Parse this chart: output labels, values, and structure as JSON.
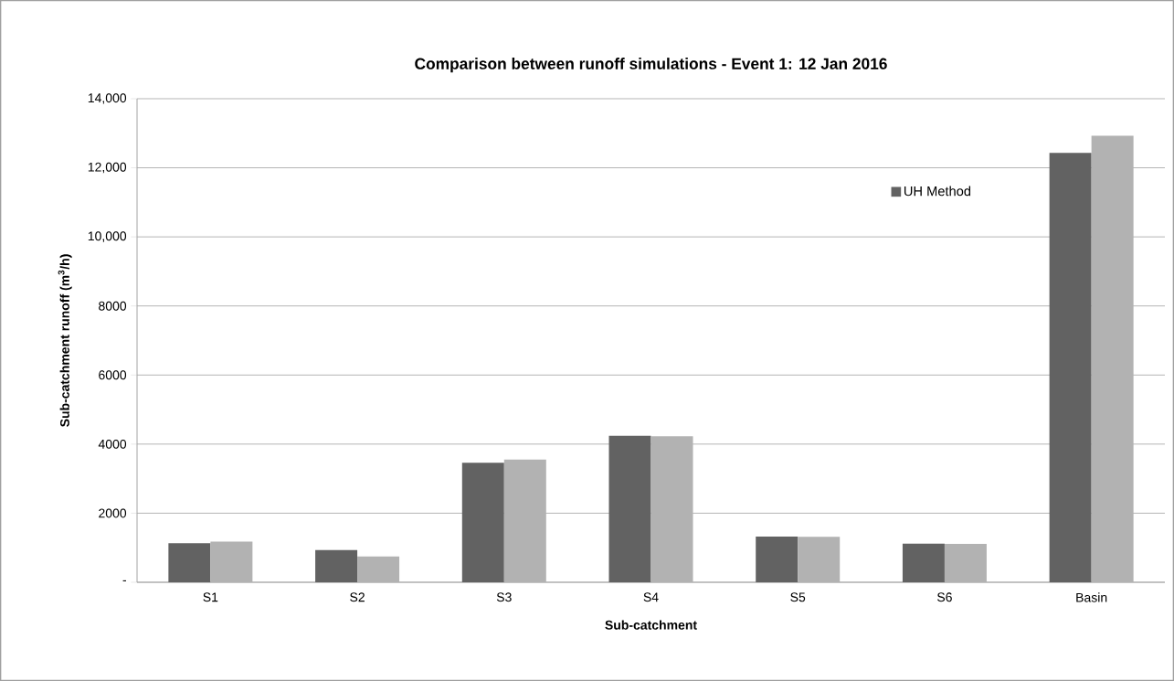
{
  "chart_data": {
    "type": "bar",
    "title": "Comparison between runoff simulations - Event 1: 12 Jan 2016",
    "xlabel": "Sub-catchment",
    "ylabel": "Sub-catchment runoff (m$^{3}$/h)",
    "categories": [
      "S1",
      "S2",
      "S3",
      "S4",
      "S5",
      "S6",
      "Basin"
    ],
    "series": [
      {
        "name": "UH Method",
        "color": "#626262",
        "values": [
          1130,
          930,
          3460,
          4240,
          1320,
          1120,
          12430
        ]
      },
      {
        "color": "#b2b2b2",
        "values": [
          1180,
          750,
          3550,
          4230,
          1315,
          1110,
          12930
        ]
      }
    ],
    "ylim": [
      0,
      14000
    ],
    "yticks": [
      {
        "value": 0,
        "label": "-"
      },
      2000,
      4000,
      6000,
      8000,
      {
        "value": 10000,
        "label": "10,000"
      },
      {
        "value": 12000,
        "label": "12,000"
      },
      {
        "value": 14000,
        "label": "14,000"
      }
    ],
    "grid": "y",
    "legend": "top right"
  }
}
